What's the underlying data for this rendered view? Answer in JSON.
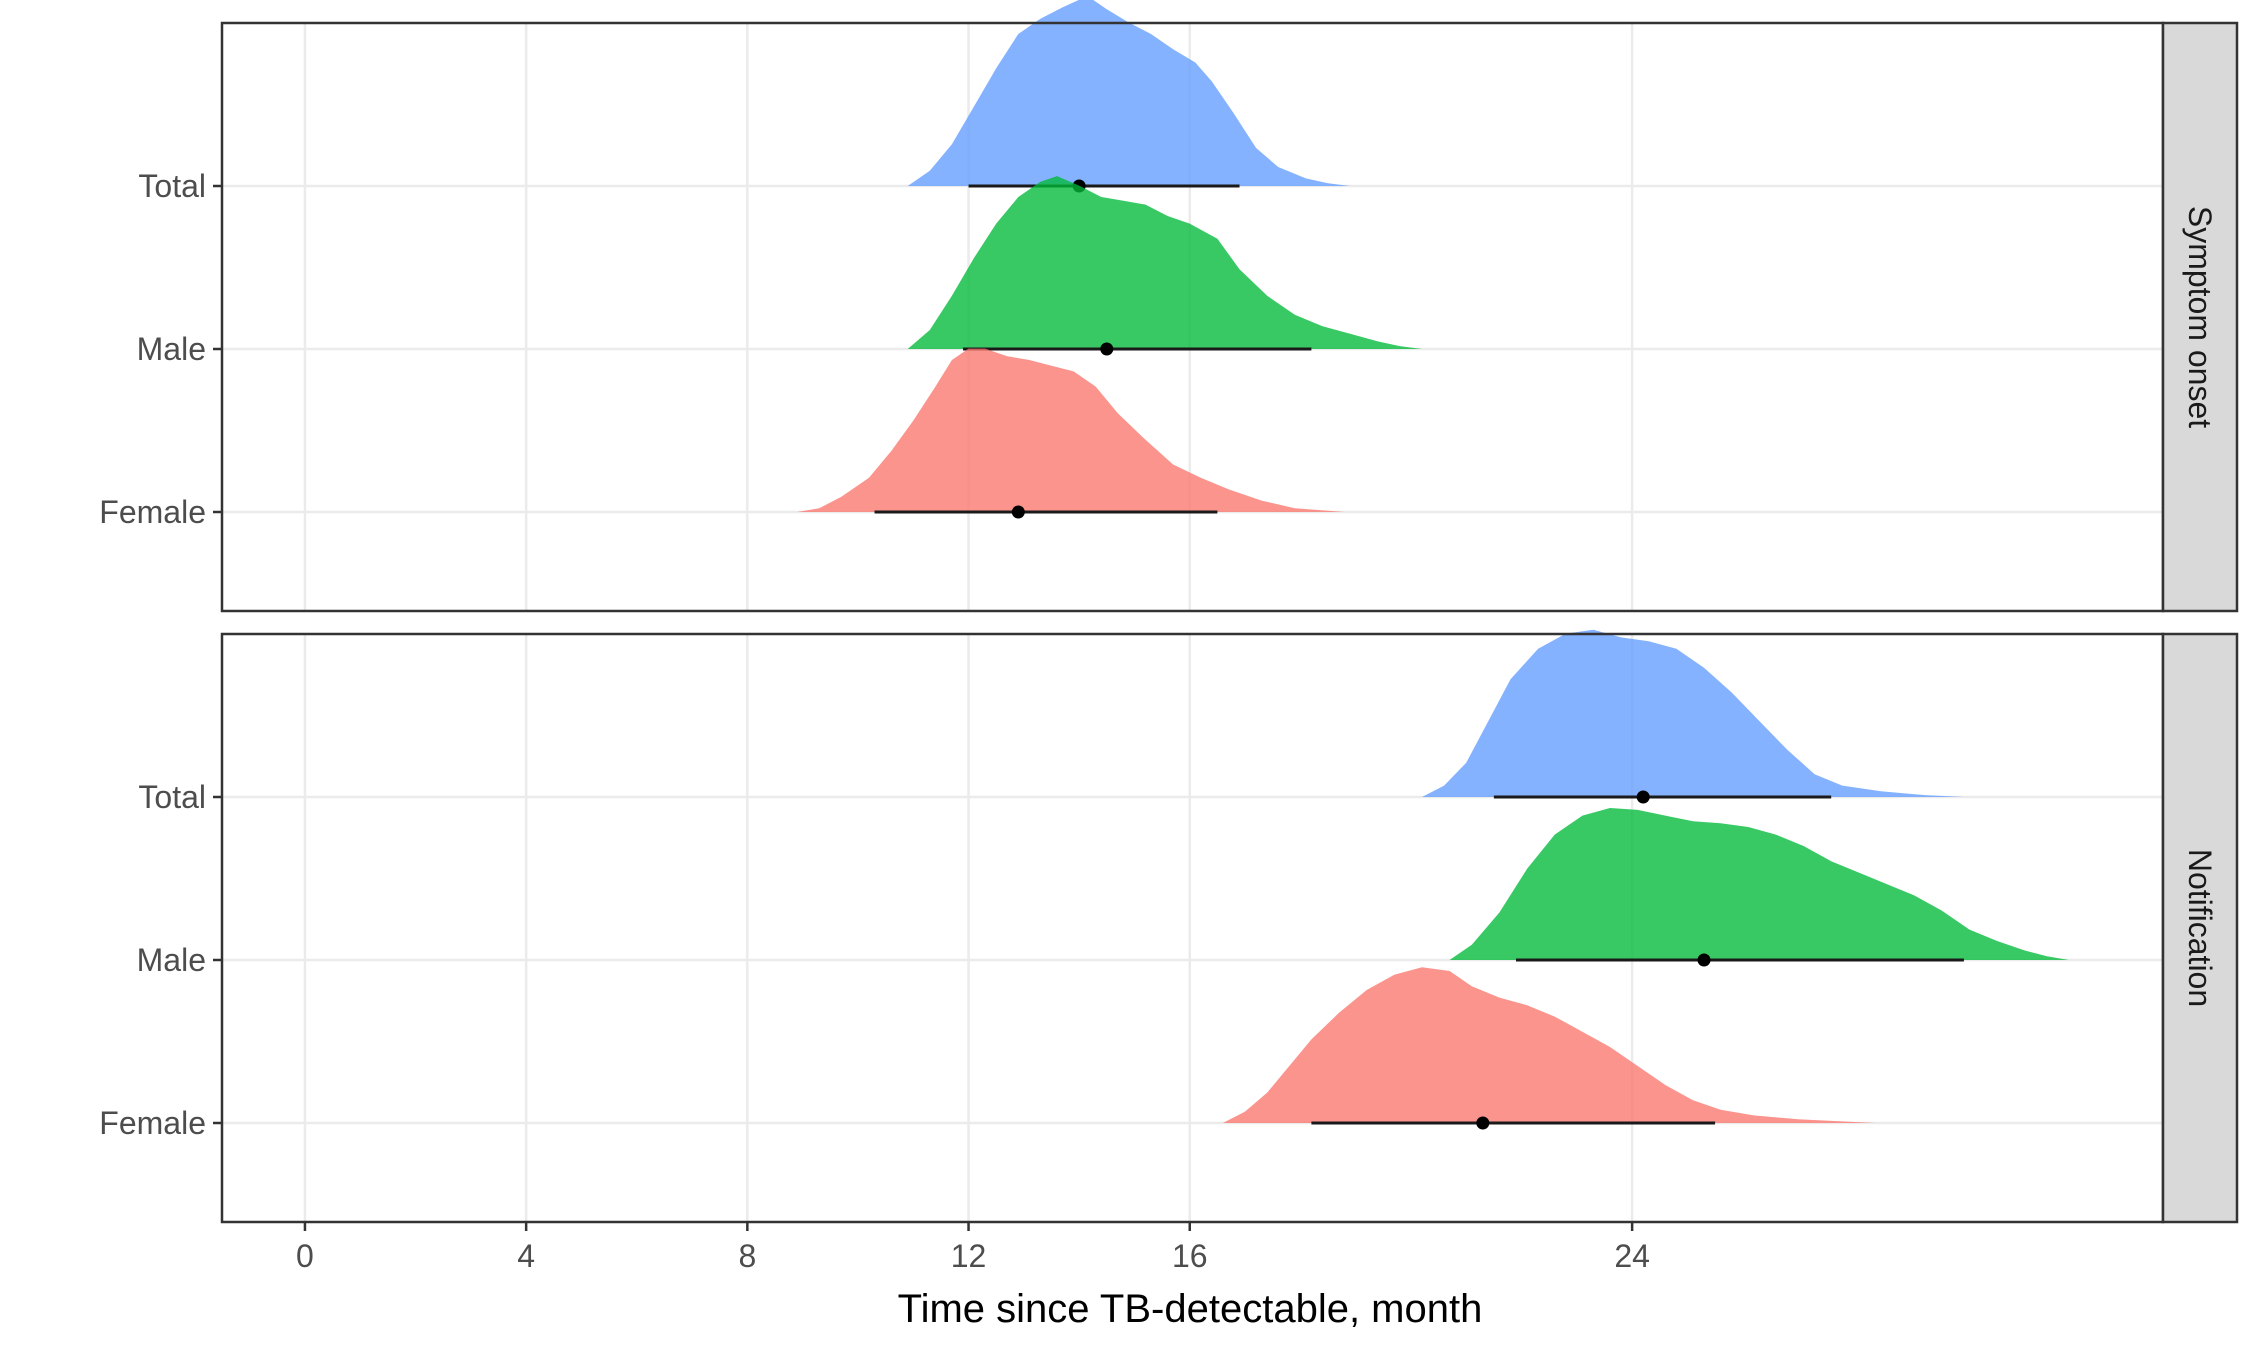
{
  "chart_data": {
    "type": "ridgeline-density",
    "xlabel": "Time since TB-detectable, month",
    "x_ticks": [
      0,
      4,
      8,
      12,
      16,
      24
    ],
    "xlim": [
      -1.5,
      33.6
    ],
    "panels": [
      {
        "label": "Symptom onset",
        "rows": [
          {
            "category": "Total",
            "color": "#619CFF",
            "point": 14.0,
            "interval": [
              12.0,
              16.9
            ],
            "range": [
              10.9,
              18.9
            ],
            "density": [
              [
                10.9,
                0.0
              ],
              [
                11.3,
                0.08
              ],
              [
                11.7,
                0.22
              ],
              [
                12.1,
                0.42
              ],
              [
                12.5,
                0.62
              ],
              [
                12.9,
                0.8
              ],
              [
                13.3,
                0.88
              ],
              [
                13.7,
                0.94
              ],
              [
                14.0,
                0.98
              ],
              [
                14.2,
                0.99
              ],
              [
                14.5,
                0.93
              ],
              [
                14.9,
                0.86
              ],
              [
                15.3,
                0.8
              ],
              [
                15.7,
                0.72
              ],
              [
                16.1,
                0.65
              ],
              [
                16.4,
                0.55
              ],
              [
                16.8,
                0.38
              ],
              [
                17.2,
                0.2
              ],
              [
                17.6,
                0.1
              ],
              [
                18.1,
                0.04
              ],
              [
                18.5,
                0.015
              ],
              [
                18.9,
                0.0
              ]
            ]
          },
          {
            "category": "Male",
            "color": "#00BA38",
            "point": 14.5,
            "interval": [
              11.9,
              18.2
            ],
            "range": [
              10.9,
              20.2
            ],
            "density": [
              [
                10.9,
                0.0
              ],
              [
                11.3,
                0.1
              ],
              [
                11.7,
                0.28
              ],
              [
                12.1,
                0.48
              ],
              [
                12.5,
                0.66
              ],
              [
                12.9,
                0.8
              ],
              [
                13.3,
                0.88
              ],
              [
                13.6,
                0.91
              ],
              [
                14.0,
                0.86
              ],
              [
                14.4,
                0.8
              ],
              [
                14.8,
                0.78
              ],
              [
                15.2,
                0.76
              ],
              [
                15.6,
                0.7
              ],
              [
                16.0,
                0.66
              ],
              [
                16.5,
                0.58
              ],
              [
                16.9,
                0.42
              ],
              [
                17.4,
                0.28
              ],
              [
                17.9,
                0.18
              ],
              [
                18.4,
                0.12
              ],
              [
                18.9,
                0.08
              ],
              [
                19.4,
                0.04
              ],
              [
                19.8,
                0.015
              ],
              [
                20.2,
                0.0
              ]
            ]
          },
          {
            "category": "Female",
            "color": "#F8766D",
            "point": 12.9,
            "interval": [
              10.3,
              16.5
            ],
            "range": [
              8.9,
              18.8
            ],
            "density": [
              [
                8.9,
                0.0
              ],
              [
                9.3,
                0.02
              ],
              [
                9.7,
                0.08
              ],
              [
                10.2,
                0.18
              ],
              [
                10.6,
                0.32
              ],
              [
                11.0,
                0.48
              ],
              [
                11.4,
                0.66
              ],
              [
                11.7,
                0.8
              ],
              [
                12.0,
                0.86
              ],
              [
                12.3,
                0.86
              ],
              [
                12.7,
                0.82
              ],
              [
                13.1,
                0.8
              ],
              [
                13.5,
                0.77
              ],
              [
                13.9,
                0.74
              ],
              [
                14.3,
                0.66
              ],
              [
                14.7,
                0.52
              ],
              [
                15.2,
                0.38
              ],
              [
                15.7,
                0.25
              ],
              [
                16.2,
                0.18
              ],
              [
                16.7,
                0.12
              ],
              [
                17.3,
                0.06
              ],
              [
                17.9,
                0.02
              ],
              [
                18.8,
                0.0
              ]
            ]
          }
        ]
      },
      {
        "label": "Notification",
        "rows": [
          {
            "category": "Total",
            "color": "#619CFF",
            "point": 24.2,
            "interval": [
              21.5,
              27.6
            ],
            "range": [
              20.2,
              30.0
            ],
            "density": [
              [
                20.2,
                0.0
              ],
              [
                20.6,
                0.06
              ],
              [
                21.0,
                0.18
              ],
              [
                21.4,
                0.4
              ],
              [
                21.8,
                0.62
              ],
              [
                22.3,
                0.78
              ],
              [
                22.8,
                0.86
              ],
              [
                23.3,
                0.88
              ],
              [
                23.8,
                0.84
              ],
              [
                24.3,
                0.82
              ],
              [
                24.8,
                0.78
              ],
              [
                25.3,
                0.68
              ],
              [
                25.8,
                0.55
              ],
              [
                26.3,
                0.4
              ],
              [
                26.8,
                0.25
              ],
              [
                27.3,
                0.12
              ],
              [
                27.8,
                0.06
              ],
              [
                28.5,
                0.03
              ],
              [
                29.3,
                0.01
              ],
              [
                30.0,
                0.0
              ]
            ]
          },
          {
            "category": "Male",
            "color": "#00BA38",
            "point": 25.3,
            "interval": [
              21.9,
              30.0
            ],
            "range": [
              20.7,
              31.9
            ],
            "density": [
              [
                20.7,
                0.0
              ],
              [
                21.1,
                0.08
              ],
              [
                21.6,
                0.25
              ],
              [
                22.1,
                0.48
              ],
              [
                22.6,
                0.66
              ],
              [
                23.1,
                0.76
              ],
              [
                23.6,
                0.8
              ],
              [
                24.1,
                0.79
              ],
              [
                24.6,
                0.76
              ],
              [
                25.1,
                0.73
              ],
              [
                25.6,
                0.72
              ],
              [
                26.1,
                0.7
              ],
              [
                26.6,
                0.66
              ],
              [
                27.1,
                0.6
              ],
              [
                27.6,
                0.52
              ],
              [
                28.1,
                0.46
              ],
              [
                28.6,
                0.4
              ],
              [
                29.1,
                0.34
              ],
              [
                29.6,
                0.26
              ],
              [
                30.1,
                0.16
              ],
              [
                30.6,
                0.1
              ],
              [
                31.1,
                0.05
              ],
              [
                31.5,
                0.02
              ],
              [
                31.9,
                0.0
              ]
            ]
          },
          {
            "category": "Female",
            "color": "#F8766D",
            "point": 21.3,
            "interval": [
              18.2,
              25.5
            ],
            "range": [
              16.6,
              28.4
            ],
            "density": [
              [
                16.6,
                0.0
              ],
              [
                17.0,
                0.06
              ],
              [
                17.4,
                0.16
              ],
              [
                17.8,
                0.3
              ],
              [
                18.2,
                0.44
              ],
              [
                18.7,
                0.58
              ],
              [
                19.2,
                0.7
              ],
              [
                19.7,
                0.78
              ],
              [
                20.2,
                0.82
              ],
              [
                20.7,
                0.8
              ],
              [
                21.1,
                0.72
              ],
              [
                21.6,
                0.66
              ],
              [
                22.1,
                0.62
              ],
              [
                22.6,
                0.56
              ],
              [
                23.1,
                0.48
              ],
              [
                23.6,
                0.4
              ],
              [
                24.1,
                0.3
              ],
              [
                24.6,
                0.2
              ],
              [
                25.1,
                0.12
              ],
              [
                25.6,
                0.07
              ],
              [
                26.2,
                0.04
              ],
              [
                27.0,
                0.02
              ],
              [
                28.4,
                0.0
              ]
            ]
          }
        ]
      }
    ]
  }
}
